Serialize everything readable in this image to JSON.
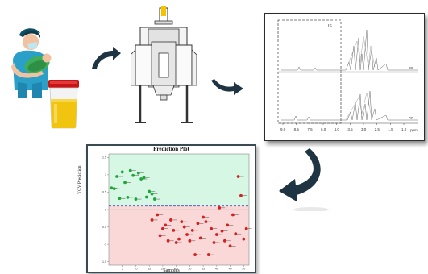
{
  "colors": {
    "arrow": "#1e3442",
    "zone_green": "#d6f7e4",
    "zone_red": "#fbd8d8",
    "point_green": "#1ea63a",
    "point_red": "#d81f1f",
    "threshold": "#4b4bb0"
  },
  "steps": [
    {
      "name": "patient-with-infant",
      "icon": "patient-infant-icon"
    },
    {
      "name": "urine-sample",
      "icon": "urine-container-icon"
    },
    {
      "name": "nmr-spectrometer",
      "icon": "nmr-magnet-icon"
    },
    {
      "name": "nmr-spectra",
      "icon": "spectrum-icon"
    },
    {
      "name": "prediction-plot",
      "icon": "prediction-plot-icon"
    }
  ],
  "spectra_panel": {
    "region_label": "IS",
    "ppm_ticks": [
      "9.0",
      "8.5",
      "7.5",
      "6.0",
      "4.0",
      "3.5",
      "3.0",
      "2.5",
      "1.5",
      "1.0"
    ],
    "ppm_unit": "ppm",
    "trace_labels": [
      "ngr",
      "ngr"
    ]
  },
  "prediction_plot": {
    "title": "Prediction Plot",
    "ylabel": "YCV Prediction",
    "xlabel": "Samples",
    "x_ticks": [
      "5",
      "10",
      "15",
      "20",
      "25",
      "30",
      "35",
      "40",
      "45",
      "50"
    ],
    "y_ticks": [
      "1.5",
      "1",
      "0.5",
      "0",
      "-0.5",
      "-1",
      "-1.5"
    ]
  },
  "chart_data": {
    "type": "scatter",
    "title": "Prediction Plot",
    "xlabel": "Samples",
    "ylabel": "YCV Prediction",
    "xlim": [
      0,
      52
    ],
    "ylim": [
      -1.6,
      1.6
    ],
    "threshold": 0.1,
    "series": [
      {
        "x": [
          1,
          2,
          3,
          4,
          5,
          6,
          7,
          8,
          9,
          10,
          11,
          12,
          13,
          14,
          15,
          16,
          17
        ],
        "y": [
          0.62,
          0.6,
          0.95,
          0.32,
          1.08,
          0.78,
          0.35,
          1.12,
          0.98,
          0.3,
          1.05,
          0.88,
          0.92,
          0.36,
          0.52,
          0.45,
          0.3
        ]
      },
      {
        "x": [
          16,
          18,
          19,
          20,
          21,
          22,
          23,
          24,
          25,
          26,
          27,
          28,
          29,
          30,
          31,
          32,
          33,
          34,
          35,
          36,
          37,
          38,
          39,
          40,
          41,
          42,
          43,
          44,
          45,
          46,
          47,
          48,
          49,
          50,
          51
        ],
        "y": [
          -0.3,
          -0.15,
          -0.75,
          -0.55,
          -0.45,
          -0.9,
          -0.3,
          -0.6,
          -0.95,
          -0.85,
          -0.35,
          -0.5,
          -0.72,
          -0.9,
          -0.6,
          -1.3,
          -0.4,
          -0.82,
          -0.22,
          -0.35,
          -1.3,
          -0.55,
          -0.95,
          -0.72,
          0.05,
          -0.62,
          -0.9,
          -0.45,
          -1.05,
          -0.15,
          -0.7,
          0.95,
          0.4,
          -0.85,
          -0.55
        ]
      }
    ]
  }
}
